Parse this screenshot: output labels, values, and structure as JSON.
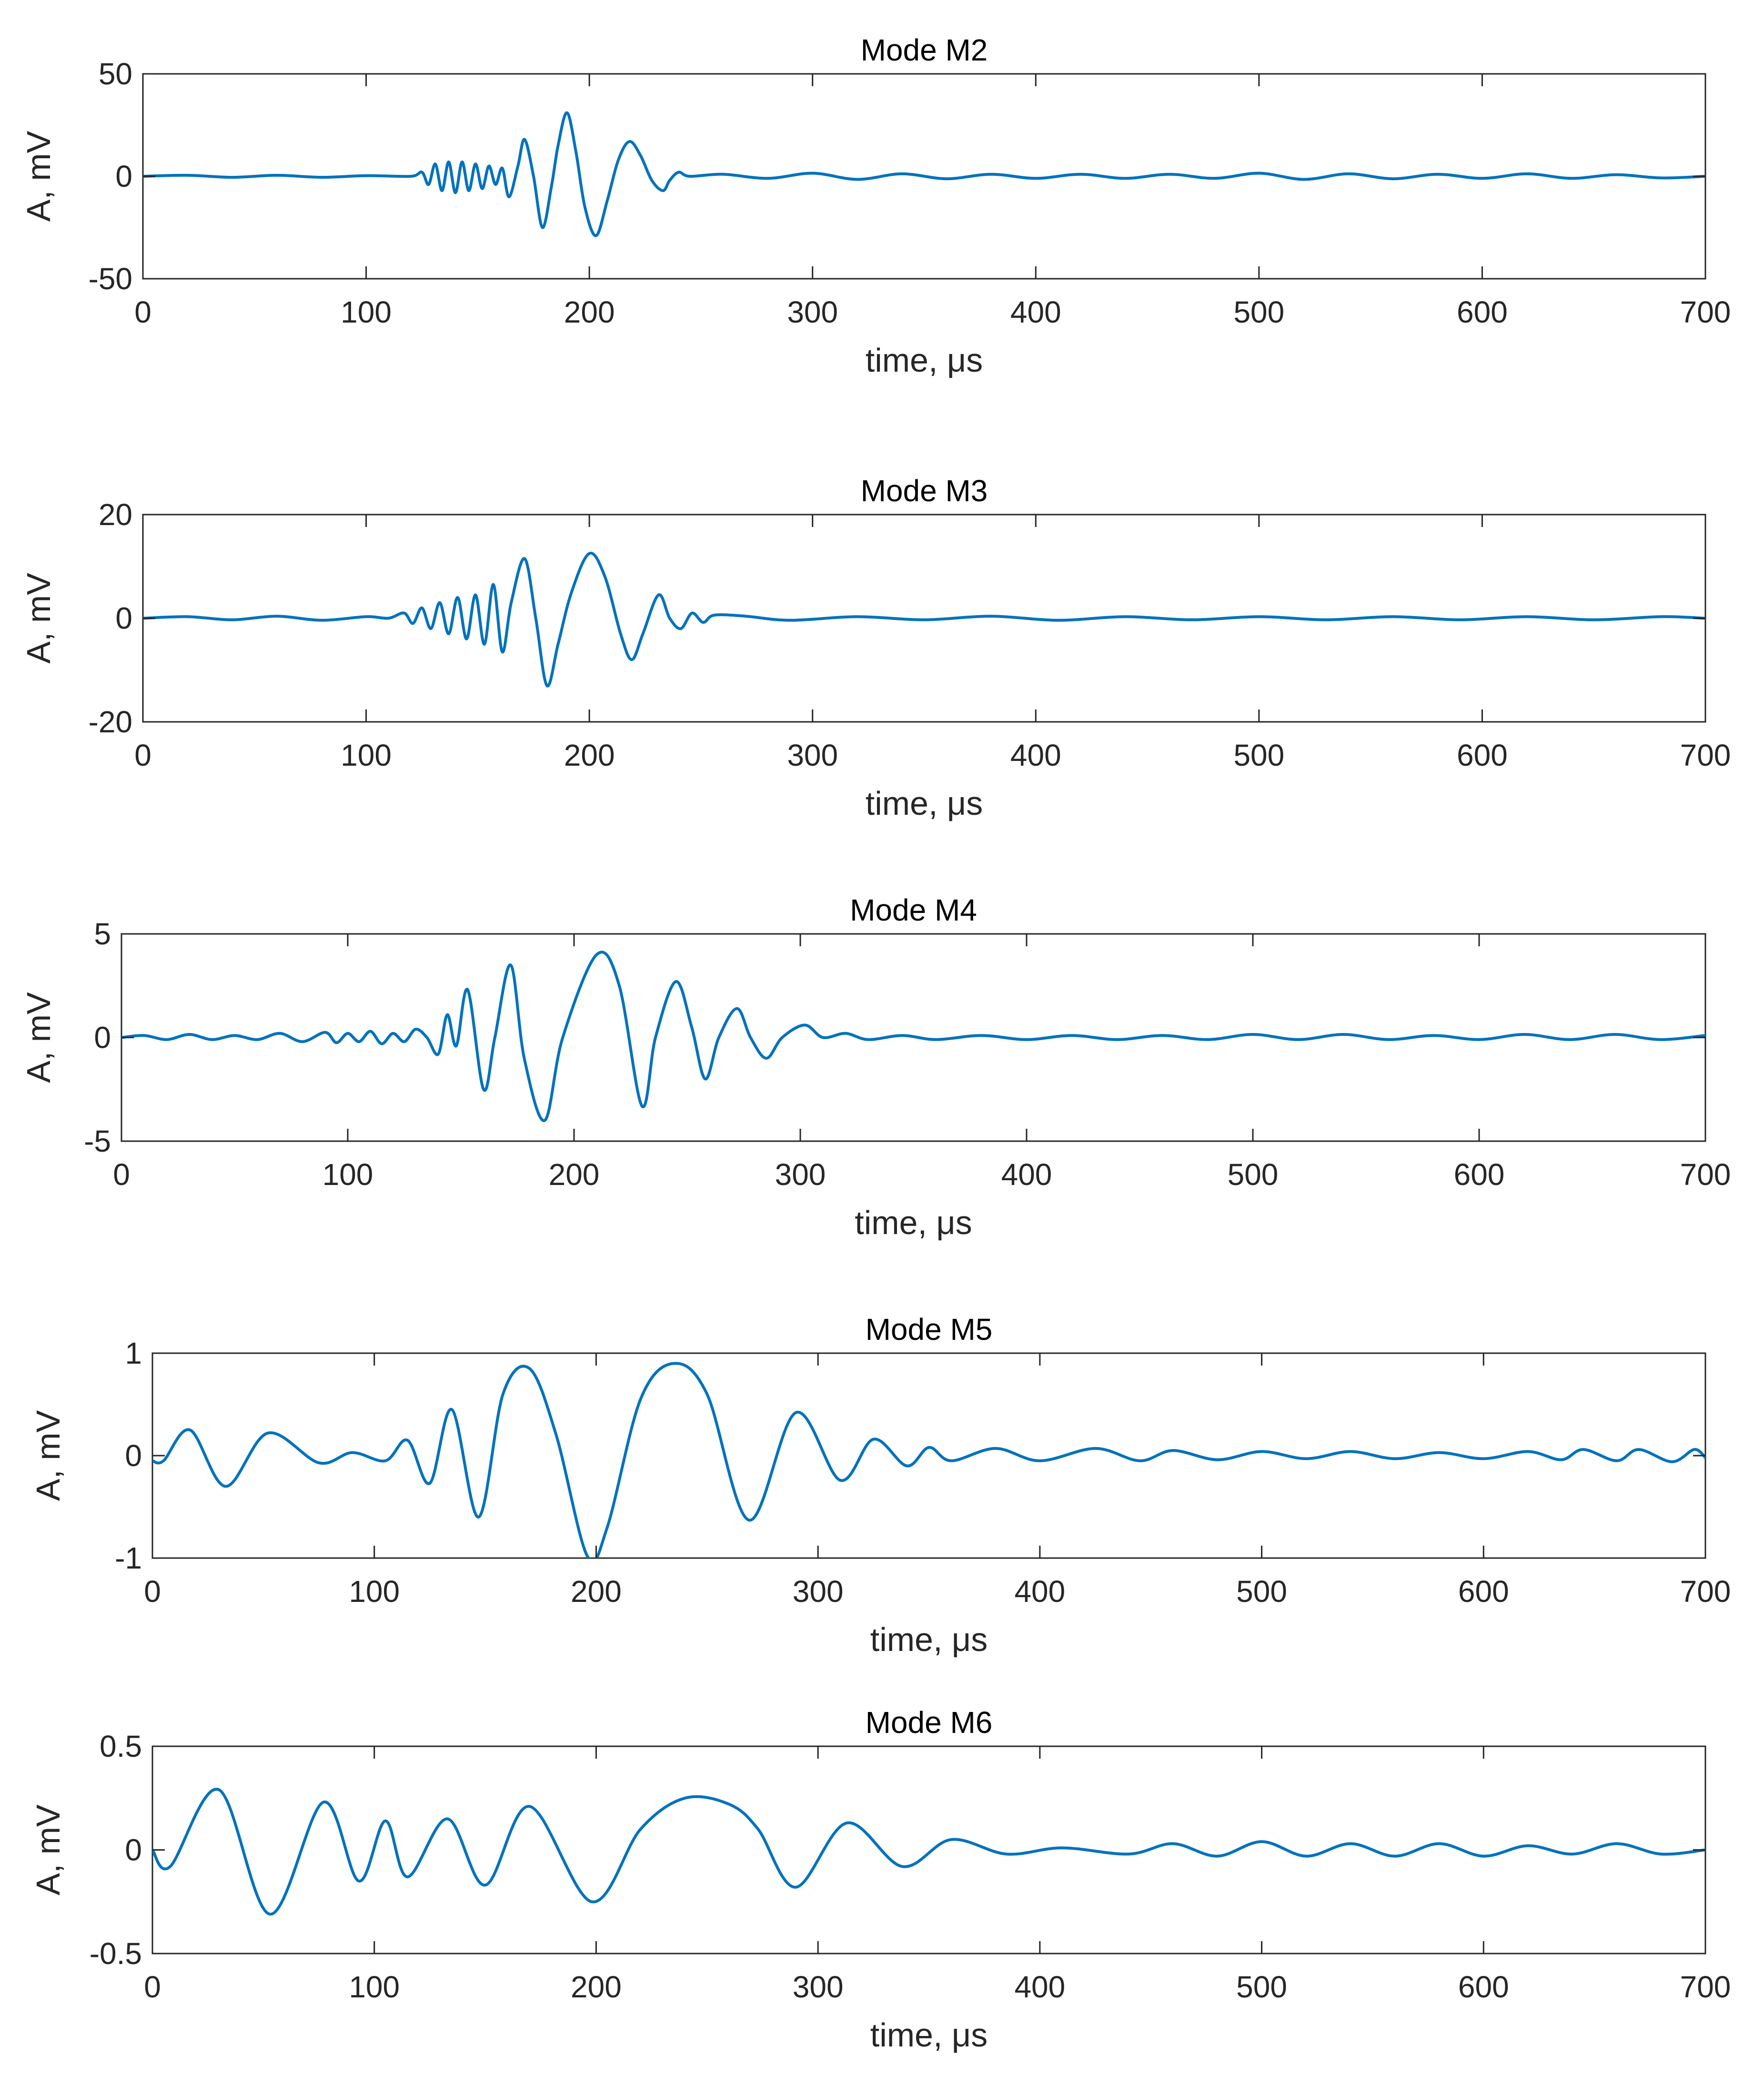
{
  "colors": {
    "line": "#0072BD",
    "axis": "#262626"
  },
  "chart_data": [
    {
      "type": "line",
      "title": "Mode M2",
      "xlabel": "time, μs",
      "ylabel": "A, mV",
      "xlim": [
        0,
        700
      ],
      "ylim": [
        -50,
        50
      ],
      "xticks": [
        "0",
        "100",
        "200",
        "300",
        "400",
        "500",
        "600",
        "700"
      ],
      "yticks": [
        "50",
        "0",
        "-50"
      ],
      "series": [
        {
          "name": "M2",
          "x": [
            0,
            20,
            40,
            60,
            80,
            100,
            120,
            125,
            128,
            131,
            134,
            137,
            140,
            143,
            146,
            149,
            152,
            155,
            158,
            161,
            164,
            168,
            171,
            175,
            179,
            183,
            186,
            190,
            194,
            198,
            203,
            208,
            213,
            218,
            223,
            228,
            233,
            236,
            240,
            245,
            260,
            280,
            300,
            320,
            340,
            360,
            380,
            400,
            420,
            440,
            460,
            480,
            500,
            520,
            540,
            560,
            580,
            600,
            620,
            640,
            660,
            680,
            700
          ],
          "values": [
            0,
            0.5,
            -0.5,
            0.5,
            -0.5,
            0.3,
            0,
            2,
            -4,
            6,
            -7,
            7,
            -8,
            7,
            -7,
            6,
            -6,
            5,
            -4,
            4,
            -10,
            5,
            18,
            0,
            -25,
            -5,
            15,
            31,
            12,
            -15,
            -29,
            -12,
            8,
            17,
            10,
            -2,
            -7,
            -2,
            2,
            0,
            1,
            -1,
            1.5,
            -1.5,
            1.2,
            -1.2,
            1,
            -1,
            1,
            -1,
            1,
            -1,
            1.5,
            -1.5,
            1.2,
            -1.2,
            1,
            -1,
            1.2,
            -1,
            0.8,
            -0.8,
            0
          ]
        }
      ]
    },
    {
      "type": "line",
      "title": "Mode M3",
      "xlabel": "time, μs",
      "ylabel": "A, mV",
      "xlim": [
        0,
        700
      ],
      "ylim": [
        -20,
        20
      ],
      "xticks": [
        "0",
        "100",
        "200",
        "300",
        "400",
        "500",
        "600",
        "700"
      ],
      "yticks": [
        "20",
        "0",
        "-20"
      ],
      "series": [
        {
          "name": "M3",
          "x": [
            0,
            20,
            40,
            60,
            80,
            100,
            110,
            117,
            121,
            125,
            129,
            133,
            137,
            141,
            145,
            149,
            153,
            157,
            161,
            165,
            171,
            176,
            181,
            186,
            192,
            200,
            207,
            214,
            219,
            224,
            231,
            236,
            241,
            246,
            251,
            256,
            270,
            290,
            320,
            350,
            380,
            410,
            440,
            470,
            500,
            530,
            560,
            590,
            620,
            650,
            680,
            700
          ],
          "values": [
            0,
            0.3,
            -0.3,
            0.4,
            -0.4,
            0.3,
            0,
            1,
            -1,
            2,
            -2,
            3,
            -3,
            4,
            -4,
            4.5,
            -5,
            6.5,
            -6.5,
            3,
            11.5,
            0,
            -13,
            -5,
            5,
            12.5,
            8,
            -3,
            -8,
            -3,
            4.5,
            0,
            -2,
            1,
            -0.8,
            0.6,
            0.4,
            -0.4,
            0.3,
            -0.3,
            0.4,
            -0.4,
            0.3,
            -0.3,
            0.3,
            -0.3,
            0.3,
            -0.3,
            0.3,
            -0.3,
            0.3,
            0
          ]
        }
      ]
    },
    {
      "type": "line",
      "title": "Mode M4",
      "xlabel": "time, μs",
      "ylabel": "A, mV",
      "xlim": [
        0,
        700
      ],
      "ylim": [
        -5,
        5
      ],
      "xticks": [
        "0",
        "100",
        "200",
        "300",
        "400",
        "500",
        "600",
        "700"
      ],
      "yticks": [
        "5",
        "0",
        "-5"
      ],
      "series": [
        {
          "name": "M4",
          "x": [
            0,
            10,
            20,
            30,
            40,
            50,
            60,
            70,
            80,
            90,
            95,
            100,
            105,
            110,
            115,
            120,
            125,
            130,
            135,
            140,
            144,
            148,
            153,
            160,
            165,
            172,
            178,
            187,
            195,
            210,
            220,
            230,
            236,
            245,
            252,
            258,
            264,
            272,
            278,
            285,
            292,
            302,
            310,
            320,
            330,
            345,
            360,
            380,
            400,
            420,
            440,
            460,
            480,
            500,
            520,
            540,
            560,
            580,
            600,
            620,
            640,
            660,
            680,
            700
          ],
          "values": [
            0,
            0.1,
            -0.1,
            0.15,
            -0.1,
            0.1,
            -0.1,
            0.2,
            -0.2,
            0.25,
            -0.25,
            0.2,
            -0.2,
            0.3,
            -0.3,
            0.2,
            -0.2,
            0.4,
            0,
            -0.8,
            1.1,
            -0.4,
            2.3,
            -2.5,
            0,
            3.5,
            -1,
            -4,
            0,
            4,
            2.5,
            -3.3,
            0,
            2.7,
            0.5,
            -2,
            0,
            1.4,
            0,
            -1,
            0,
            0.6,
            0,
            0.2,
            -0.1,
            0.1,
            -0.1,
            0.1,
            -0.1,
            0.1,
            -0.1,
            0.1,
            -0.1,
            0.15,
            -0.1,
            0.15,
            -0.1,
            0.1,
            -0.1,
            0.15,
            -0.1,
            0.15,
            -0.1,
            0.1
          ]
        }
      ]
    },
    {
      "type": "line",
      "title": "Mode M5",
      "xlabel": "time, μs",
      "ylabel": "A, mV",
      "xlim": [
        0,
        700
      ],
      "ylim": [
        -1,
        1
      ],
      "xticks": [
        "0",
        "100",
        "200",
        "300",
        "400",
        "500",
        "600",
        "700"
      ],
      "yticks": [
        "1",
        "0",
        "-1"
      ],
      "series": [
        {
          "name": "M5",
          "x": [
            0,
            5,
            17,
            33,
            52,
            75,
            90,
            105,
            115,
            125,
            135,
            147,
            158,
            170,
            182,
            196,
            205,
            220,
            235,
            250,
            269,
            290,
            310,
            325,
            340,
            350,
            360,
            380,
            400,
            425,
            445,
            460,
            480,
            500,
            520,
            540,
            560,
            580,
            600,
            620,
            635,
            645,
            660,
            670,
            685,
            695,
            700
          ],
          "values": [
            -0.05,
            -0.05,
            0.25,
            -0.3,
            0.22,
            -0.07,
            0.03,
            -0.05,
            0.15,
            -0.27,
            0.45,
            -0.6,
            0.6,
            0.85,
            0.2,
            -0.98,
            -0.7,
            0.55,
            0.9,
            0.6,
            -0.63,
            0.42,
            -0.24,
            0.16,
            -0.1,
            0.08,
            -0.05,
            0.07,
            -0.05,
            0.07,
            -0.05,
            0.05,
            -0.04,
            0.04,
            -0.03,
            0.04,
            -0.03,
            0.03,
            -0.03,
            0.04,
            -0.04,
            0.06,
            -0.05,
            0.06,
            -0.06,
            0.06,
            -0.02
          ]
        }
      ]
    },
    {
      "type": "line",
      "title": "Mode M6",
      "xlabel": "time, μs",
      "ylabel": "A, mV",
      "xlim": [
        0,
        700
      ],
      "ylim": [
        -0.5,
        0.5
      ],
      "xticks": [
        "0",
        "100",
        "200",
        "300",
        "400",
        "500",
        "600",
        "700"
      ],
      "yticks": [
        "0.5",
        "0",
        "-0.5"
      ],
      "series": [
        {
          "name": "M6",
          "x": [
            0,
            8,
            30,
            53,
            77,
            93,
            105,
            115,
            133,
            150,
            170,
            198,
            220,
            240,
            260,
            273,
            290,
            313,
            338,
            360,
            385,
            410,
            440,
            460,
            480,
            500,
            520,
            540,
            560,
            580,
            600,
            620,
            640,
            660,
            680,
            700
          ],
          "values": [
            0,
            -0.08,
            0.29,
            -0.31,
            0.23,
            -0.15,
            0.14,
            -0.13,
            0.15,
            -0.17,
            0.21,
            -0.25,
            0.1,
            0.25,
            0.22,
            0.1,
            -0.18,
            0.13,
            -0.08,
            0.05,
            -0.02,
            0.01,
            -0.02,
            0.03,
            -0.03,
            0.04,
            -0.03,
            0.03,
            -0.03,
            0.03,
            -0.03,
            0.02,
            -0.02,
            0.03,
            -0.02,
            0
          ]
        }
      ]
    }
  ]
}
